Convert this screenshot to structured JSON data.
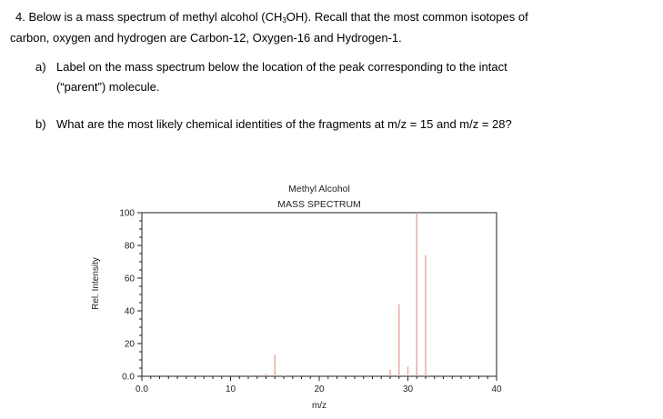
{
  "question": {
    "number": "4.",
    "line1_pre": "Below is a mass spectrum of methyl alcohol (CH",
    "line1_sub": "3",
    "line1_post": "OH).  Recall that the most common isotopes of",
    "line2": "carbon, oxygen and hydrogen are Carbon-12, Oxygen-16 and Hydrogen-1.",
    "part_a_label": "a)",
    "part_a_line1": "Label on the mass spectrum below the location of the peak corresponding to the intact",
    "part_a_line2": "(“parent”) molecule.",
    "part_b_label": "b)",
    "part_b_text": "What are the most likely chemical identities of the fragments at m/z = 15 and m/z = 28?"
  },
  "chart_data": {
    "type": "bar",
    "title": "Methyl Alcohol",
    "subtitle": "MASS SPECTRUM",
    "xlabel": "m/z",
    "ylabel": "Rel. Intensity",
    "xlim": [
      0,
      40
    ],
    "ylim": [
      0,
      100
    ],
    "x_ticks": [
      "0.0",
      "10",
      "20",
      "30",
      "40"
    ],
    "y_ticks": [
      "0.0",
      "20",
      "40",
      "60",
      "80",
      "100"
    ],
    "bar_color": "#e8a09c",
    "peaks": [
      {
        "mz": 12,
        "intensity": 0.5
      },
      {
        "mz": 13,
        "intensity": 0.7
      },
      {
        "mz": 14,
        "intensity": 1.5
      },
      {
        "mz": 15,
        "intensity": 13
      },
      {
        "mz": 16,
        "intensity": 0.3
      },
      {
        "mz": 28,
        "intensity": 4
      },
      {
        "mz": 29,
        "intensity": 44
      },
      {
        "mz": 30,
        "intensity": 6
      },
      {
        "mz": 31,
        "intensity": 100
      },
      {
        "mz": 32,
        "intensity": 74
      },
      {
        "mz": 33,
        "intensity": 1
      }
    ]
  }
}
